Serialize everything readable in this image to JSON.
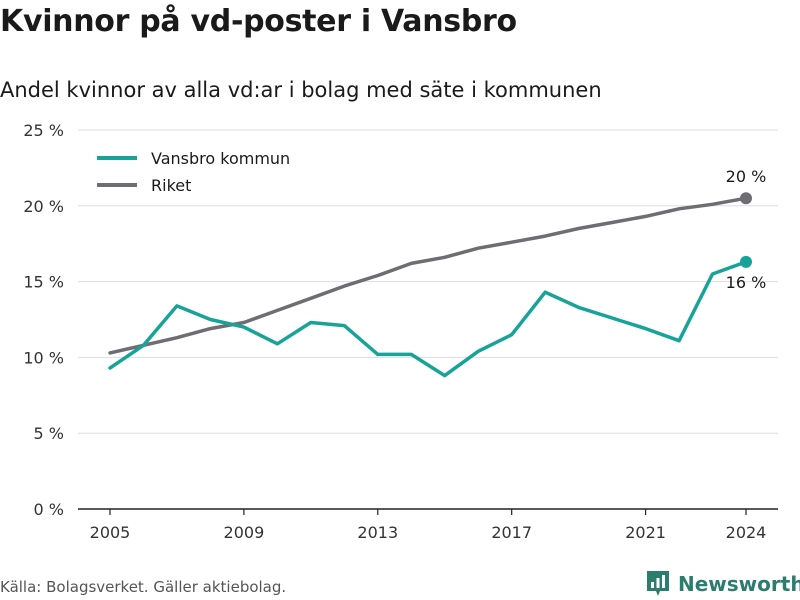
{
  "header": {
    "title": "Kvinnor på vd-poster i Vansbro",
    "subtitle": "Andel kvinnor av alla vd:ar i bolag med säte i kommunen"
  },
  "footer": {
    "source": "Källa: Bolagsverket. Gäller aktiebolag.",
    "brand": "Newsworthy",
    "brand_icon": "bar-chart-icon",
    "brand_color": "#2d7d6f"
  },
  "chart_data": {
    "type": "line",
    "x": [
      2005,
      2006,
      2007,
      2008,
      2009,
      2010,
      2011,
      2012,
      2013,
      2014,
      2015,
      2016,
      2017,
      2018,
      2019,
      2020,
      2021,
      2022,
      2023,
      2024
    ],
    "series": [
      {
        "name": "Vansbro kommun",
        "color": "#17a398",
        "values": [
          9.3,
          10.8,
          13.4,
          12.5,
          12.0,
          10.9,
          12.3,
          12.1,
          10.2,
          10.2,
          8.8,
          10.4,
          11.5,
          14.3,
          13.3,
          12.6,
          11.9,
          11.1,
          15.5,
          16.3
        ],
        "end_label": "16 %"
      },
      {
        "name": "Riket",
        "color": "#6e6d73",
        "values": [
          10.3,
          10.8,
          11.3,
          11.9,
          12.3,
          13.1,
          13.9,
          14.7,
          15.4,
          16.2,
          16.6,
          17.2,
          17.6,
          18.0,
          18.5,
          18.9,
          19.3,
          19.8,
          20.1,
          20.5
        ],
        "end_label": "20 %"
      }
    ],
    "x_ticks": [
      "2005",
      "2009",
      "2013",
      "2017",
      "2021",
      "2024"
    ],
    "y_ticks": [
      "0 %",
      "5 %",
      "10 %",
      "15 %",
      "20 %",
      "25 %"
    ],
    "ylim": [
      0,
      25
    ],
    "grid": true,
    "legend_position": "top-left"
  }
}
